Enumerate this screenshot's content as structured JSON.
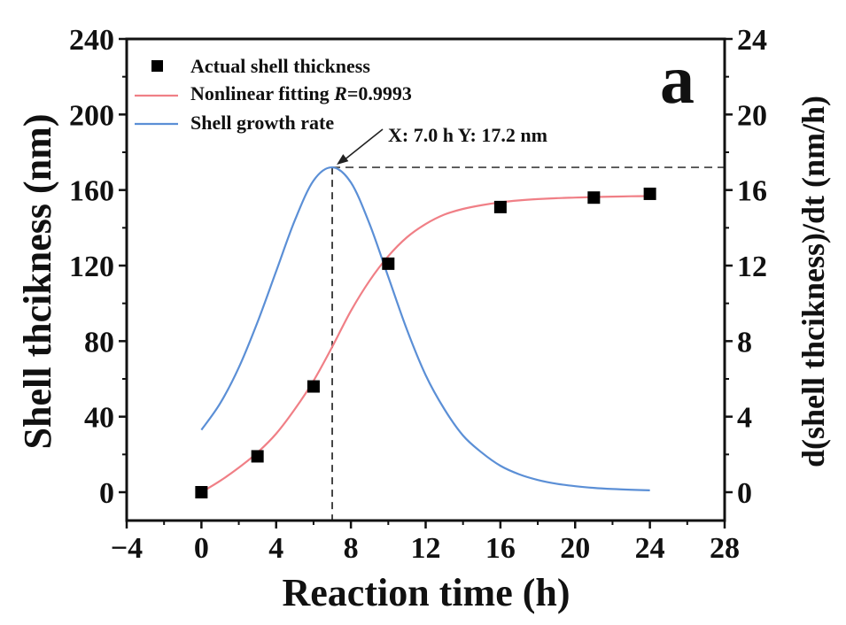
{
  "chart_data": {
    "type": "line",
    "panel_label": "a",
    "xlabel": "Reaction time (h)",
    "ylabel_left": "Shell thcikness (nm)",
    "ylabel_right": "d(shell thcikness)/dt (nm/h)",
    "x_range": [
      -4,
      28
    ],
    "y_left_range": [
      -15,
      240
    ],
    "y_right_range": [
      -1.5,
      24
    ],
    "x_ticks": [
      -4,
      0,
      4,
      8,
      12,
      16,
      20,
      24,
      28
    ],
    "x_tick_labels": [
      "−4",
      "0",
      "4",
      "8",
      "12",
      "16",
      "20",
      "24",
      "28"
    ],
    "y_left_ticks": [
      0,
      40,
      80,
      120,
      160,
      200,
      240
    ],
    "y_right_ticks": [
      0,
      4,
      8,
      12,
      16,
      20,
      24
    ],
    "grid": false,
    "legend_position": "top-left",
    "legend": [
      {
        "label": "Actual shell thickness",
        "marker": "square",
        "color": "#000000"
      },
      {
        "label_prefix": "Nonlinear fitting ",
        "label_italic": "R",
        "label_suffix": "=0.9993",
        "marker": "line",
        "color": "#f07f86"
      },
      {
        "label": "Shell growth rate",
        "marker": "line",
        "color": "#5b8fd6"
      }
    ],
    "series": [
      {
        "name": "Actual shell thickness",
        "axis": "left",
        "kind": "scatter",
        "color": "#000000",
        "x": [
          0,
          3,
          6,
          10,
          16,
          21,
          24
        ],
        "y": [
          0,
          19,
          56,
          121,
          151,
          156,
          158
        ]
      },
      {
        "name": "Nonlinear fitting",
        "axis": "left",
        "kind": "line",
        "color": "#f07f86",
        "x": [
          0,
          1,
          2,
          3,
          4,
          5,
          6,
          7,
          8,
          9,
          10,
          11,
          12,
          13,
          14,
          15,
          16,
          17,
          18,
          19,
          20,
          21,
          22,
          23,
          24
        ],
        "y": [
          0,
          6,
          13,
          21,
          31,
          44,
          59,
          77,
          96,
          112,
          125,
          135,
          142,
          147,
          150,
          152,
          153.5,
          154.5,
          155.2,
          155.7,
          156,
          156.3,
          156.5,
          156.7,
          156.8
        ]
      },
      {
        "name": "Shell growth rate",
        "axis": "right",
        "kind": "line",
        "color": "#5b8fd6",
        "x": [
          0,
          1,
          2,
          3,
          4,
          5,
          6,
          7,
          8,
          9,
          10,
          11,
          12,
          13,
          14,
          15,
          16,
          17,
          18,
          19,
          20,
          21,
          22,
          23,
          24
        ],
        "y": [
          3.3,
          4.7,
          6.6,
          9.0,
          11.7,
          14.4,
          16.5,
          17.2,
          16.4,
          14.2,
          11.4,
          8.6,
          6.2,
          4.4,
          3.0,
          2.1,
          1.4,
          0.95,
          0.65,
          0.45,
          0.32,
          0.23,
          0.17,
          0.13,
          0.1
        ]
      }
    ],
    "annotations": [
      {
        "text": "X: 7.0 h Y: 17.2 nm",
        "x": 7.0,
        "y": 17.2,
        "axis": "right",
        "arrow": true
      },
      {
        "kind": "dashed-vline",
        "x": 7.0
      },
      {
        "kind": "dashed-hline",
        "y": 17.2,
        "axis": "right"
      }
    ]
  }
}
